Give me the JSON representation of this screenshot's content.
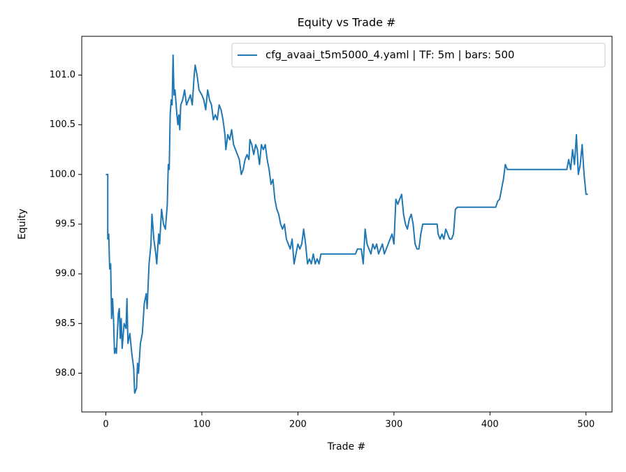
{
  "chart_data": {
    "type": "line",
    "title": "Equity vs Trade #",
    "xlabel": "Trade #",
    "ylabel": "Equity",
    "legend": "upper right",
    "grid": false,
    "xlim": [
      -25.1,
      527.1
    ],
    "ylim": [
      97.61,
      101.39
    ],
    "xticks": [
      0,
      100,
      200,
      300,
      400,
      500
    ],
    "yticks": [
      {
        "value": 98.0,
        "label": "98.0"
      },
      {
        "value": 98.5,
        "label": "98.5"
      },
      {
        "value": 99.0,
        "label": "99.0"
      },
      {
        "value": 99.5,
        "label": "99.5"
      },
      {
        "value": 100.0,
        "label": "100.0"
      },
      {
        "value": 100.5,
        "label": "100.5"
      },
      {
        "value": 101.0,
        "label": "101.0"
      }
    ],
    "x": [
      0,
      2,
      2,
      3,
      4,
      5,
      6,
      7,
      8,
      9,
      10,
      11,
      13,
      14,
      15,
      16,
      17,
      19,
      21,
      22,
      23,
      25,
      27,
      29,
      30,
      32,
      33,
      34,
      36,
      38,
      40,
      42,
      43,
      45,
      47,
      48,
      50,
      52,
      53,
      55,
      56,
      58,
      60,
      62,
      64,
      65,
      66,
      67,
      68,
      69,
      70,
      71,
      72,
      74,
      75,
      76,
      77,
      78,
      80,
      82,
      84,
      86,
      88,
      90,
      92,
      93,
      95,
      97,
      100,
      102,
      104,
      106,
      108,
      110,
      112,
      114,
      116,
      118,
      120,
      122,
      124,
      125,
      127,
      129,
      131,
      133,
      135,
      137,
      139,
      141,
      143,
      145,
      147,
      149,
      150,
      152,
      154,
      156,
      158,
      160,
      162,
      164,
      166,
      168,
      170,
      172,
      174,
      176,
      178,
      180,
      182,
      184,
      186,
      188,
      190,
      192,
      194,
      196,
      198,
      200,
      202,
      204,
      206,
      208,
      210,
      212,
      214,
      216,
      218,
      220,
      222,
      224,
      226,
      260,
      262,
      266,
      268,
      270,
      272,
      274,
      276,
      278,
      280,
      282,
      284,
      286,
      288,
      290,
      292,
      294,
      296,
      298,
      300,
      302,
      304,
      306,
      308,
      310,
      312,
      314,
      316,
      318,
      320,
      322,
      324,
      326,
      328,
      330,
      345,
      346,
      348,
      350,
      352,
      354,
      356,
      358,
      360,
      362,
      364,
      366,
      406,
      408,
      410,
      412,
      414,
      416,
      418,
      420,
      480,
      482,
      484,
      486,
      488,
      490,
      492,
      494,
      496,
      498,
      500,
      502
    ],
    "series": [
      {
        "name": "cfg_avaai_t5m5000_4.yaml | TF: 5m | bars: 500",
        "color": "#1f77b4",
        "values": [
          100.0,
          100.0,
          99.35,
          99.4,
          99.05,
          99.1,
          98.55,
          98.75,
          98.55,
          98.2,
          98.25,
          98.2,
          98.6,
          98.65,
          98.35,
          98.55,
          98.25,
          98.5,
          98.45,
          98.75,
          98.3,
          98.4,
          98.2,
          98.05,
          97.8,
          97.85,
          98.1,
          98.0,
          98.3,
          98.4,
          98.7,
          98.8,
          98.65,
          99.1,
          99.3,
          99.6,
          99.35,
          99.2,
          99.1,
          99.4,
          99.3,
          99.65,
          99.5,
          99.45,
          99.7,
          100.1,
          100.05,
          100.6,
          100.75,
          100.7,
          101.2,
          100.8,
          100.85,
          100.6,
          100.5,
          100.6,
          100.45,
          100.7,
          100.75,
          100.85,
          100.7,
          100.75,
          100.8,
          100.7,
          101.0,
          101.1,
          101.0,
          100.85,
          100.8,
          100.75,
          100.65,
          100.85,
          100.75,
          100.7,
          100.55,
          100.6,
          100.55,
          100.7,
          100.65,
          100.55,
          100.4,
          100.25,
          100.4,
          100.35,
          100.45,
          100.3,
          100.25,
          100.2,
          100.15,
          100.0,
          100.05,
          100.15,
          100.2,
          100.15,
          100.35,
          100.3,
          100.2,
          100.3,
          100.25,
          100.1,
          100.3,
          100.25,
          100.3,
          100.15,
          100.05,
          99.9,
          99.95,
          99.75,
          99.65,
          99.6,
          99.5,
          99.45,
          99.5,
          99.35,
          99.3,
          99.25,
          99.35,
          99.1,
          99.2,
          99.3,
          99.25,
          99.3,
          99.45,
          99.3,
          99.1,
          99.15,
          99.1,
          99.2,
          99.1,
          99.15,
          99.1,
          99.2,
          99.2,
          99.2,
          99.25,
          99.25,
          99.1,
          99.45,
          99.3,
          99.25,
          99.2,
          99.3,
          99.25,
          99.3,
          99.2,
          99.25,
          99.3,
          99.2,
          99.25,
          99.3,
          99.35,
          99.4,
          99.3,
          99.75,
          99.7,
          99.75,
          99.8,
          99.6,
          99.5,
          99.45,
          99.55,
          99.6,
          99.5,
          99.3,
          99.25,
          99.25,
          99.4,
          99.5,
          99.5,
          99.4,
          99.35,
          99.4,
          99.35,
          99.45,
          99.4,
          99.35,
          99.35,
          99.4,
          99.65,
          99.67,
          99.67,
          99.73,
          99.75,
          99.85,
          99.95,
          100.1,
          100.05,
          100.05,
          100.05,
          100.15,
          100.05,
          100.25,
          100.1,
          100.4,
          100.0,
          100.1,
          100.3,
          100.0,
          99.8,
          99.8
        ]
      }
    ]
  }
}
